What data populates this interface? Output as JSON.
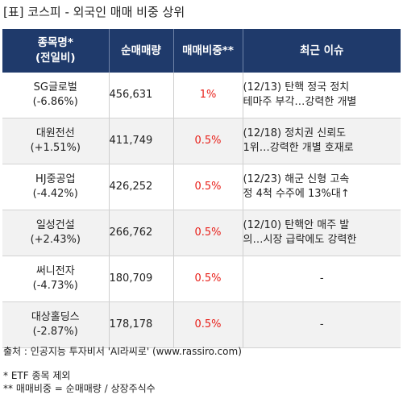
{
  "title": "[표] 코스피 - 외국인 매매 비중 상위",
  "table": {
    "headers": [
      "종목명*\n(전일비)",
      "순매매량",
      "매매비중**",
      "최근 이슈"
    ],
    "rows": [
      {
        "name": "SG글로벌",
        "change": "(-6.86%)",
        "volume": "456,631",
        "ratio": "1%",
        "issue": [
          "(12/13) 탄핵 정국 정치",
          "테마주 부각…강력한 개별"
        ]
      },
      {
        "name": "대원전선",
        "change": "(+1.51%)",
        "volume": "411,749",
        "ratio": "0.5%",
        "issue": [
          "(12/18) 정치권 신뢰도",
          "1위…강력한 개별 호재로"
        ]
      },
      {
        "name": "HJ중공업",
        "change": "(-4.42%)",
        "volume": "426,252",
        "ratio": "0.5%",
        "issue": [
          "(12/23) 해군 신형 고속",
          "정 4척 수주에 13%대↑"
        ]
      },
      {
        "name": "일성건설",
        "change": "(+2.43%)",
        "volume": "266,762",
        "ratio": "0.5%",
        "issue": [
          "(12/10) 탄핵안 매주 발",
          "의…시장 급락에도 강력한"
        ]
      },
      {
        "name": "써니전자",
        "change": "(-4.73%)",
        "volume": "180,709",
        "ratio": "0.5%",
        "issue": [
          "-"
        ]
      },
      {
        "name": "대상홀딩스",
        "change": "(-2.87%)",
        "volume": "178,178",
        "ratio": "0.5%",
        "issue": [
          "-"
        ]
      }
    ]
  },
  "footer": {
    "source": "출처 : 인공지능 투자비서 'AI라씨로' (www.rassiro.com)",
    "note1": "* ETF 종목 제외",
    "note2": "** 매매비중 = 순매매량 / 상장주식수"
  },
  "colors": {
    "header_bg": "#1f3a6b",
    "ratio_text": "#e8201a",
    "row_alt": "#f2f2f2"
  }
}
